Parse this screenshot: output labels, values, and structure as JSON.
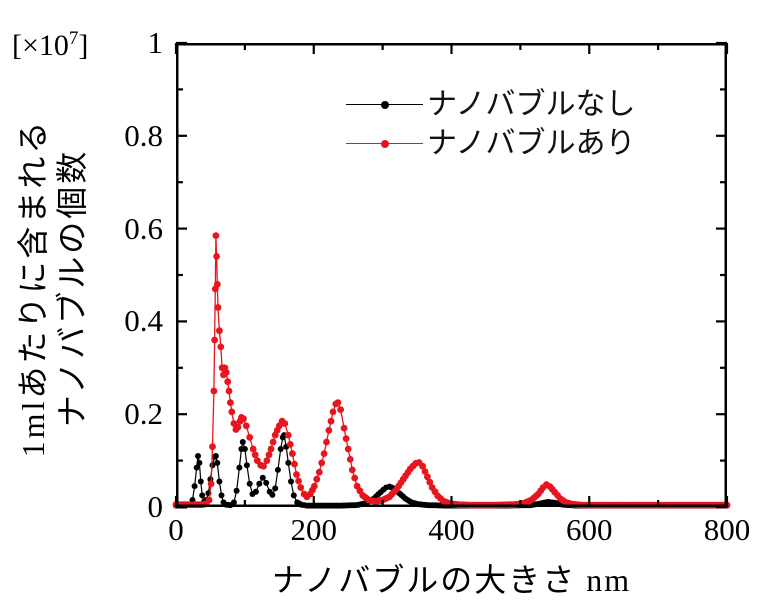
{
  "chart_data": {
    "type": "line",
    "title": "",
    "xlabel": "ナノバブルの大きさ nm",
    "ylabel_line1": "1mlあたりに含まれる",
    "ylabel_line2": "ナノバブルの個数",
    "y_unit_prefix": "[×10",
    "y_unit_exponent": "7",
    "y_unit_suffix": "]",
    "xlim": [
      0,
      800
    ],
    "ylim": [
      0,
      1
    ],
    "grid": false,
    "legend_position": "top-center-inside",
    "x_ticks_major": [
      0,
      200,
      400,
      600,
      800
    ],
    "x_ticks_minor": [
      100,
      300,
      500,
      700
    ],
    "y_ticks_major": [
      0,
      0.2,
      0.4,
      0.6,
      0.8,
      1
    ],
    "y_ticks_minor": [
      0.1,
      0.3,
      0.5,
      0.7,
      0.9
    ],
    "x_tick_labels": [
      "0",
      "200",
      "400",
      "600",
      "800"
    ],
    "y_tick_labels": [
      "1",
      "0.8",
      "0.6",
      "0.4",
      "0.2",
      "0"
    ],
    "axis_color": "#000000",
    "series": [
      {
        "name": "ナノバブルなし",
        "color": "#000000",
        "marker_r": 3.0,
        "line_width": 1.2,
        "points": [
          [
            0,
            0.003
          ],
          [
            14,
            0.003
          ],
          [
            20,
            0.005
          ],
          [
            24,
            0.015
          ],
          [
            27,
            0.045
          ],
          [
            30,
            0.085
          ],
          [
            32,
            0.11
          ],
          [
            34,
            0.095
          ],
          [
            36,
            0.055
          ],
          [
            38,
            0.025
          ],
          [
            41,
            0.012
          ],
          [
            44,
            0.015
          ],
          [
            47,
            0.03
          ],
          [
            50,
            0.06
          ],
          [
            53,
            0.09
          ],
          [
            56,
            0.108
          ],
          [
            58,
            0.11
          ],
          [
            60,
            0.095
          ],
          [
            63,
            0.055
          ],
          [
            66,
            0.025
          ],
          [
            69,
            0.01
          ],
          [
            73,
            0.005
          ],
          [
            79,
            0.004
          ],
          [
            84,
            0.01
          ],
          [
            88,
            0.035
          ],
          [
            92,
            0.085
          ],
          [
            95,
            0.125
          ],
          [
            97,
            0.14
          ],
          [
            100,
            0.125
          ],
          [
            103,
            0.09
          ],
          [
            107,
            0.05
          ],
          [
            111,
            0.028
          ],
          [
            116,
            0.033
          ],
          [
            121,
            0.05
          ],
          [
            126,
            0.063
          ],
          [
            131,
            0.052
          ],
          [
            136,
            0.033
          ],
          [
            140,
            0.026
          ],
          [
            144,
            0.04
          ],
          [
            148,
            0.08
          ],
          [
            152,
            0.125
          ],
          [
            155,
            0.15
          ],
          [
            157,
            0.155
          ],
          [
            160,
            0.13
          ],
          [
            163,
            0.095
          ],
          [
            167,
            0.055
          ],
          [
            171,
            0.025
          ],
          [
            176,
            0.01
          ],
          [
            182,
            0.005
          ],
          [
            190,
            0.003
          ],
          [
            210,
            0.003
          ],
          [
            240,
            0.003
          ],
          [
            262,
            0.004
          ],
          [
            275,
            0.008
          ],
          [
            287,
            0.018
          ],
          [
            297,
            0.032
          ],
          [
            305,
            0.042
          ],
          [
            310,
            0.044
          ],
          [
            316,
            0.04
          ],
          [
            324,
            0.03
          ],
          [
            333,
            0.018
          ],
          [
            342,
            0.01
          ],
          [
            352,
            0.006
          ],
          [
            365,
            0.004
          ],
          [
            390,
            0.003
          ],
          [
            430,
            0.003
          ],
          [
            480,
            0.003
          ],
          [
            515,
            0.004
          ],
          [
            528,
            0.007
          ],
          [
            540,
            0.011
          ],
          [
            550,
            0.009
          ],
          [
            562,
            0.005
          ],
          [
            580,
            0.003
          ],
          [
            640,
            0.003
          ],
          [
            720,
            0.003
          ],
          [
            800,
            0.003
          ]
        ]
      },
      {
        "name": "ナノバブルあり",
        "color": "#e8141e",
        "marker_r": 3.4,
        "line_width": 1.3,
        "points": [
          [
            0,
            0.005
          ],
          [
            20,
            0.005
          ],
          [
            38,
            0.005
          ],
          [
            44,
            0.007
          ],
          [
            48,
            0.015
          ],
          [
            51,
            0.05
          ],
          [
            53,
            0.13
          ],
          [
            55,
            0.25
          ],
          [
            56,
            0.36
          ],
          [
            57,
            0.47
          ],
          [
            58,
            0.585
          ],
          [
            59,
            0.54
          ],
          [
            60,
            0.48
          ],
          [
            61,
            0.43
          ],
          [
            63,
            0.38
          ],
          [
            65,
            0.345
          ],
          [
            67,
            0.3
          ],
          [
            69,
            0.285
          ],
          [
            71,
            0.3
          ],
          [
            73,
            0.29
          ],
          [
            75,
            0.27
          ],
          [
            77,
            0.25
          ],
          [
            79,
            0.225
          ],
          [
            81,
            0.205
          ],
          [
            84,
            0.18
          ],
          [
            87,
            0.167
          ],
          [
            90,
            0.172
          ],
          [
            93,
            0.185
          ],
          [
            95,
            0.193
          ],
          [
            98,
            0.19
          ],
          [
            102,
            0.175
          ],
          [
            107,
            0.15
          ],
          [
            112,
            0.125
          ],
          [
            118,
            0.1
          ],
          [
            123,
            0.09
          ],
          [
            127,
            0.088
          ],
          [
            132,
            0.1
          ],
          [
            138,
            0.125
          ],
          [
            144,
            0.155
          ],
          [
            150,
            0.175
          ],
          [
            154,
            0.185
          ],
          [
            158,
            0.18
          ],
          [
            163,
            0.155
          ],
          [
            169,
            0.115
          ],
          [
            175,
            0.07
          ],
          [
            181,
            0.042
          ],
          [
            186,
            0.028
          ],
          [
            190,
            0.022
          ],
          [
            195,
            0.028
          ],
          [
            201,
            0.045
          ],
          [
            208,
            0.075
          ],
          [
            215,
            0.115
          ],
          [
            222,
            0.165
          ],
          [
            228,
            0.205
          ],
          [
            232,
            0.222
          ],
          [
            235,
            0.225
          ],
          [
            239,
            0.21
          ],
          [
            244,
            0.17
          ],
          [
            250,
            0.125
          ],
          [
            256,
            0.08
          ],
          [
            263,
            0.045
          ],
          [
            271,
            0.025
          ],
          [
            280,
            0.015
          ],
          [
            290,
            0.012
          ],
          [
            300,
            0.015
          ],
          [
            310,
            0.022
          ],
          [
            320,
            0.038
          ],
          [
            330,
            0.06
          ],
          [
            340,
            0.082
          ],
          [
            348,
            0.094
          ],
          [
            353,
            0.096
          ],
          [
            358,
            0.088
          ],
          [
            365,
            0.065
          ],
          [
            372,
            0.042
          ],
          [
            380,
            0.024
          ],
          [
            388,
            0.013
          ],
          [
            398,
            0.007
          ],
          [
            410,
            0.005
          ],
          [
            430,
            0.004
          ],
          [
            460,
            0.004
          ],
          [
            490,
            0.005
          ],
          [
            505,
            0.008
          ],
          [
            516,
            0.015
          ],
          [
            526,
            0.028
          ],
          [
            533,
            0.042
          ],
          [
            538,
            0.048
          ],
          [
            543,
            0.044
          ],
          [
            550,
            0.032
          ],
          [
            558,
            0.018
          ],
          [
            566,
            0.01
          ],
          [
            575,
            0.006
          ],
          [
            590,
            0.004
          ],
          [
            620,
            0.004
          ],
          [
            680,
            0.004
          ],
          [
            740,
            0.004
          ],
          [
            800,
            0.004
          ]
        ]
      }
    ],
    "legend": [
      {
        "label": "ナノバブルなし",
        "color": "#000000"
      },
      {
        "label": "ナノバブルあり",
        "color": "#e8141e"
      }
    ]
  }
}
